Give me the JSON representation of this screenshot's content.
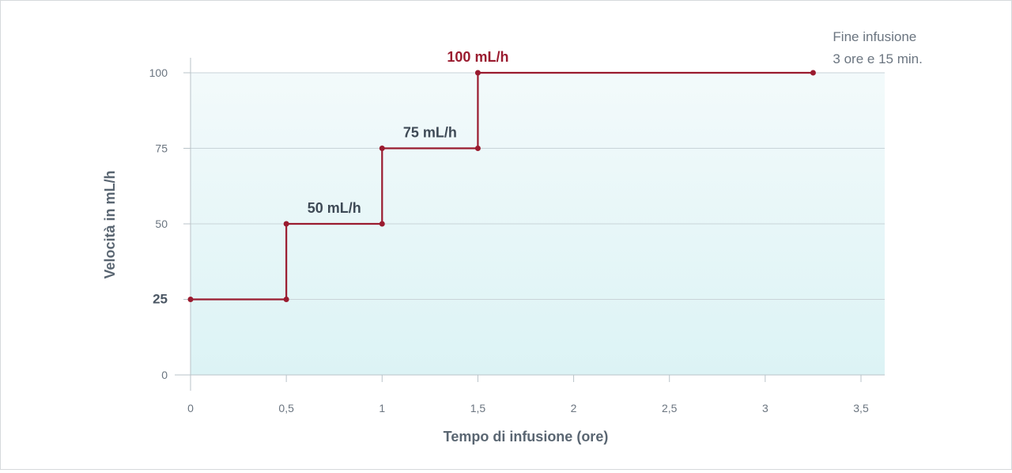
{
  "chart_data": {
    "type": "line",
    "line_shape": "step",
    "title": "",
    "xlabel": "Tempo di infusione (ore)",
    "ylabel": "Velocità in mL/h",
    "xlim": [
      0,
      3.5
    ],
    "ylim": [
      0,
      100
    ],
    "x_ticks": [
      0,
      0.5,
      1,
      1.5,
      2,
      2.5,
      3,
      3.5
    ],
    "x_tick_labels": [
      "0",
      "0,5",
      "1",
      "1,5",
      "2",
      "2,5",
      "3",
      "3,5"
    ],
    "y_ticks": [
      0,
      25,
      50,
      75,
      100
    ],
    "y_tick_labels": [
      "0",
      "25",
      "50",
      "75",
      "100"
    ],
    "grid": true,
    "series": [
      {
        "points": [
          {
            "x": 0,
            "y": 25
          },
          {
            "x": 0.5,
            "y": 25
          },
          {
            "x": 0.5,
            "y": 50
          },
          {
            "x": 1,
            "y": 50
          },
          {
            "x": 1,
            "y": 75
          },
          {
            "x": 1.5,
            "y": 75
          },
          {
            "x": 1.5,
            "y": 100
          },
          {
            "x": 3.25,
            "y": 100
          }
        ]
      }
    ],
    "annotations": [
      {
        "text": "50 mL/h",
        "x": 0.75,
        "y": 50,
        "accent": false
      },
      {
        "text": "75 mL/h",
        "x": 1.25,
        "y": 75,
        "accent": false
      },
      {
        "text": "100 mL/h",
        "x": 1.5,
        "y": 100,
        "accent": true
      }
    ],
    "end_note": [
      "Fine infusione",
      "3 ore e 15 min."
    ],
    "colors": {
      "line": "#9a1b2f",
      "grid": "#c9d3d8",
      "axis": "#b9c3c9",
      "fill_top": "#f3fafb",
      "fill_bottom": "#dcf3f5"
    }
  }
}
